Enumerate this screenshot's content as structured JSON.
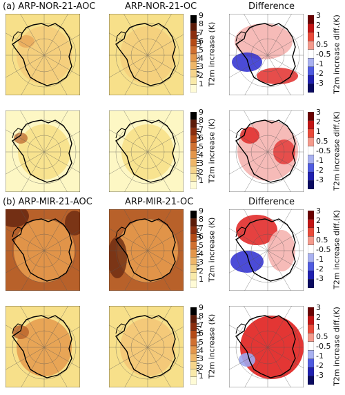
{
  "panels": {
    "a_label": "(a) ARP-NOR-21-AOC",
    "a_mid": "ARP-NOR-21-OC",
    "a_right": "Difference",
    "b_label": "(b) ARP-MIR-21-AOC",
    "b_mid": "ARP-MIR-21-OC",
    "b_right": "Difference"
  },
  "seasons": {
    "winter": "Winter (JJA)",
    "summer": "Summer (DJF)"
  },
  "colorbars": {
    "increase_label": "T2m increase (K)",
    "diff_label": "T2m increase diff.(K)",
    "increase_ticks": [
      "9",
      "8",
      "7",
      "6",
      "5",
      "4",
      "3",
      "2",
      "1"
    ],
    "diff_ticks": [
      "3",
      "2",
      "1",
      "0.5",
      "-0.5",
      "-1",
      "-2",
      "-3"
    ]
  },
  "colors": {
    "yellow_light": "#fdf7c4",
    "yellow": "#f7e08a",
    "orange_light": "#f3c777",
    "orange": "#e59a4c",
    "brown": "#b8612a",
    "dark_brown": "#6b2a12",
    "red": "#e0201e",
    "pink": "#f5b4b0",
    "blue": "#2b2bd0",
    "light_blue": "#9fa7ee"
  }
}
